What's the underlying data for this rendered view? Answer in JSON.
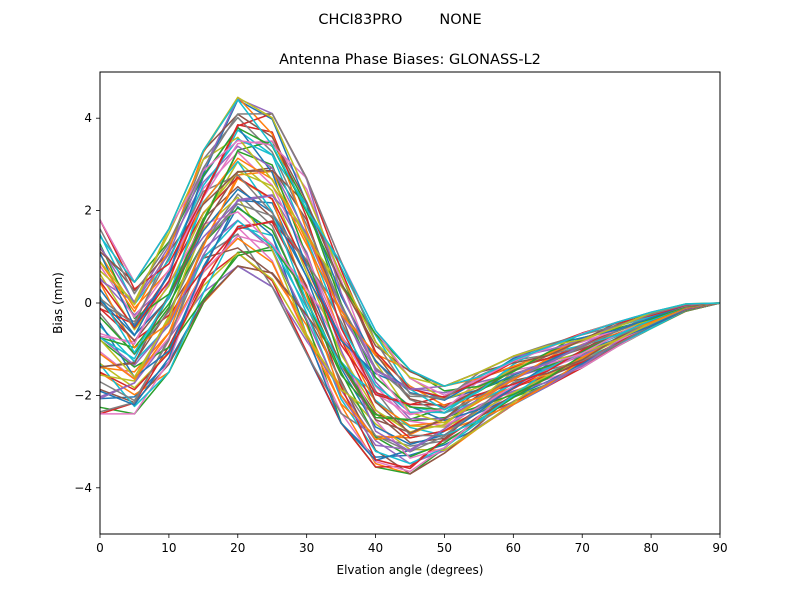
{
  "figure": {
    "suptitle": "CHCI83PRO        NONE"
  },
  "chart_data": {
    "type": "line",
    "title": "Antenna Phase Biases: GLONASS-L2",
    "xlabel": "Elvation angle (degrees)",
    "ylabel": "Bias (mm)",
    "xlim": [
      0,
      90
    ],
    "ylim": [
      -5,
      5
    ],
    "xticks": [
      0,
      10,
      20,
      30,
      40,
      50,
      60,
      70,
      80,
      90
    ],
    "yticks": [
      -4,
      -2,
      0,
      2,
      4
    ],
    "grid": false,
    "legend": "none",
    "x": [
      0,
      5,
      10,
      15,
      20,
      25,
      30,
      35,
      40,
      45,
      50,
      55,
      60,
      65,
      70,
      75,
      80,
      85,
      90
    ],
    "series_count": 60,
    "envelope_note_values": {
      "upper": [
        1.8,
        0.45,
        1.6,
        3.3,
        4.45,
        4.1,
        2.7,
        0.9,
        -0.6,
        -1.45,
        -1.8,
        -1.5,
        -1.15,
        -0.9,
        -0.65,
        -0.42,
        -0.2,
        -0.02,
        0.0
      ],
      "lower": [
        -2.4,
        -2.4,
        -1.5,
        0.0,
        0.8,
        0.35,
        -1.1,
        -2.6,
        -3.55,
        -3.7,
        -3.25,
        -2.7,
        -2.2,
        -1.8,
        -1.4,
        -0.95,
        -0.55,
        -0.18,
        0.0
      ]
    },
    "series_colors": [
      "#1f77b4",
      "#ff7f0e",
      "#2ca02c",
      "#d62728",
      "#9467bd",
      "#8c564b",
      "#e377c2",
      "#7f7f7f",
      "#bcbd22",
      "#17becf"
    ]
  }
}
